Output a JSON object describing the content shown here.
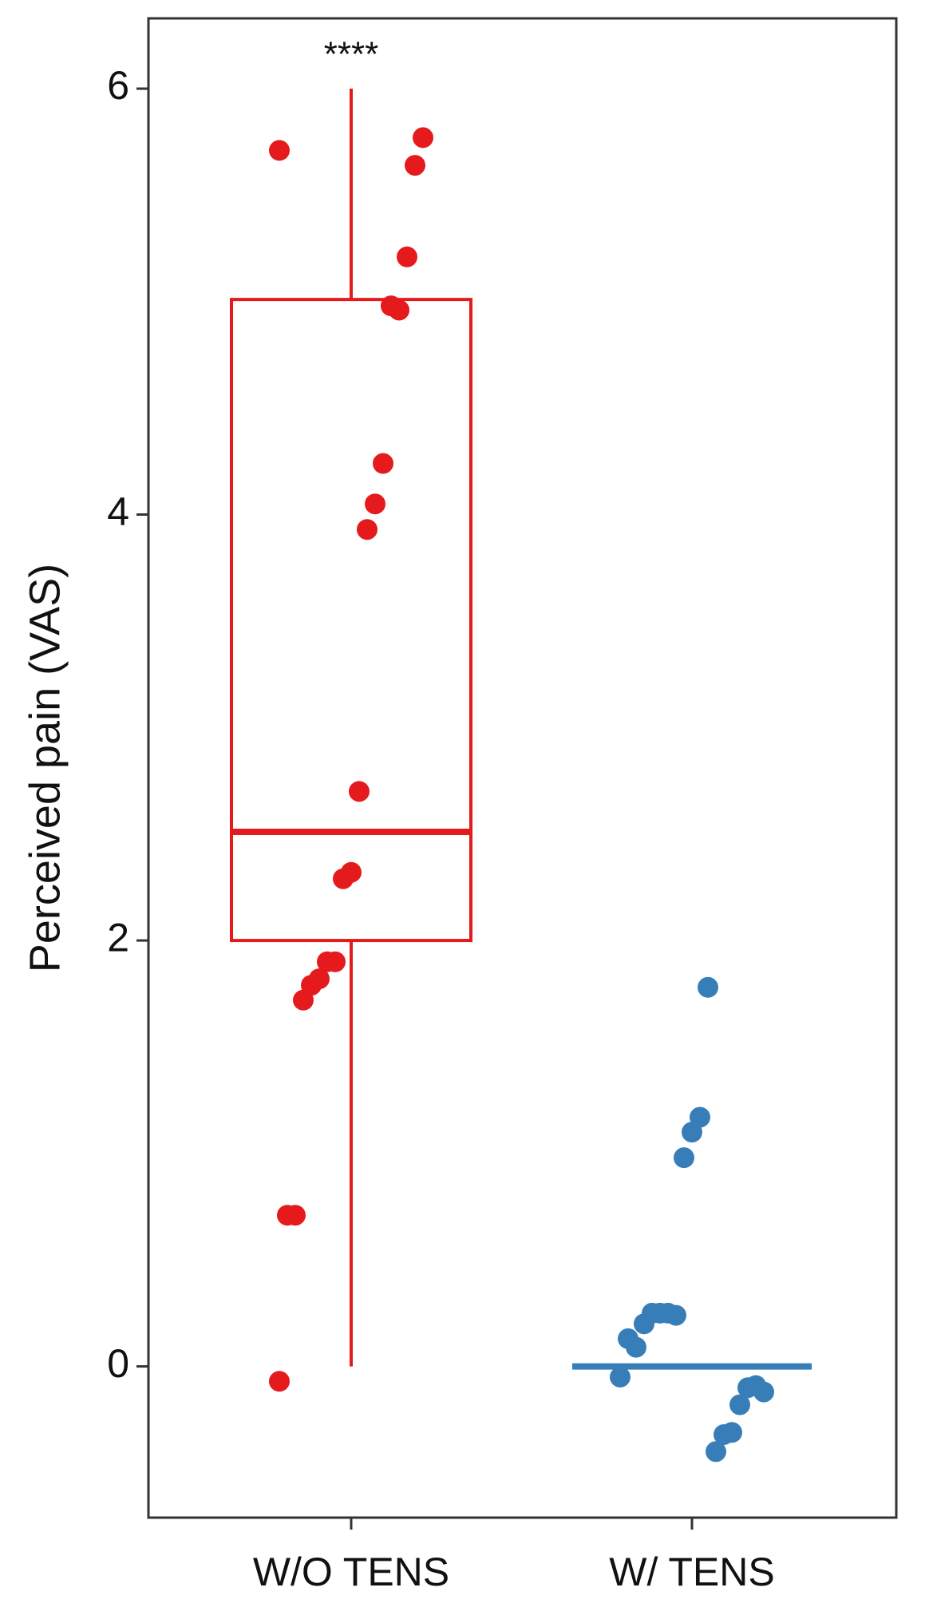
{
  "chart_data": {
    "type": "box",
    "y_label": "Perceived pain (VAS)",
    "annotation": "****",
    "ylim": [
      -0.71,
      6.33
    ],
    "yticks": [
      0,
      2,
      4,
      6
    ],
    "groups": [
      {
        "name": "W/O TENS",
        "color": "#e41a1c",
        "box": {
          "q1": 2,
          "median": 2.51,
          "q3": 5.01,
          "whisker_low": 0,
          "whisker_high": 6
        },
        "values": [
          5.71,
          5.77,
          5.64,
          5.21,
          4.96,
          4.98,
          4.24,
          4.05,
          3.93,
          2.7,
          2.32,
          2.29,
          1.9,
          1.9,
          1.82,
          1.79,
          1.72,
          0.71,
          0.71,
          -0.07
        ]
      },
      {
        "name": "W/ TENS",
        "color": "#377eb8",
        "box": {
          "q1": 0,
          "median": 0,
          "q3": 0,
          "whisker_low": 0,
          "whisker_high": 0
        },
        "values": [
          1.78,
          1.17,
          1.1,
          0.98,
          0.24,
          0.25,
          0.25,
          0.25,
          0.2,
          0.09,
          0.13,
          -0.05,
          -0.12,
          -0.09,
          -0.1,
          -0.18,
          -0.31,
          -0.32,
          -0.4
        ]
      }
    ]
  }
}
